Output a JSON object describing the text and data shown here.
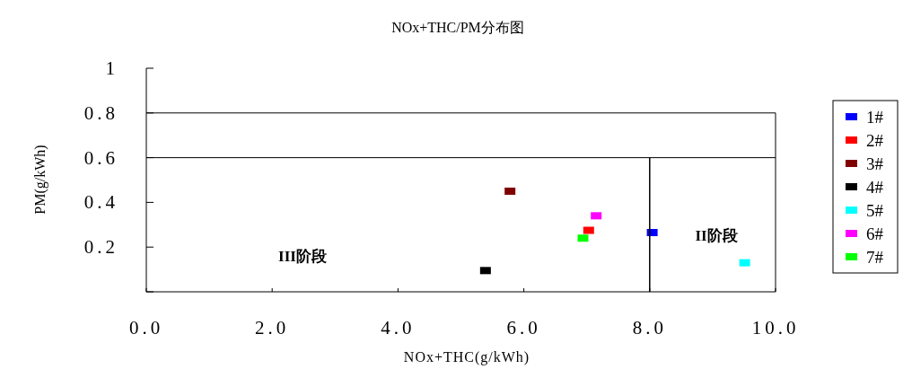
{
  "chart_data": {
    "type": "scatter",
    "title": "NOx+THC/PM分布图",
    "xlabel": "NOx+THC(g/kWh)",
    "ylabel": "PM(g/kWh)",
    "xlim": [
      0,
      10
    ],
    "ylim": [
      0,
      1
    ],
    "xticks": [
      {
        "value": 0,
        "label": "0.0"
      },
      {
        "value": 2,
        "label": "2.0"
      },
      {
        "value": 4,
        "label": "4.0"
      },
      {
        "value": 6,
        "label": "6.0"
      },
      {
        "value": 8,
        "label": "8.0"
      },
      {
        "value": 10,
        "label": "10.0"
      }
    ],
    "yticks": [
      {
        "value": 0,
        "label": null
      },
      0.2,
      0.4,
      0.6,
      0.8,
      1
    ],
    "marker": "square",
    "legend": "right",
    "grid": false,
    "series": [
      {
        "name": "1#",
        "color": "#0000ff",
        "x": [
          8.04
        ],
        "values": [
          0.265
        ]
      },
      {
        "name": "2#",
        "color": "#ff0000",
        "x": [
          7.03
        ],
        "values": [
          0.275
        ]
      },
      {
        "name": "3#",
        "color": "#800000",
        "x": [
          5.78
        ],
        "values": [
          0.45
        ]
      },
      {
        "name": "4#",
        "color": "#000000",
        "x": [
          5.39
        ],
        "values": [
          0.095
        ]
      },
      {
        "name": "5#",
        "color": "#00ffff",
        "x": [
          9.51
        ],
        "values": [
          0.13
        ]
      },
      {
        "name": "6#",
        "color": "#ff00ff",
        "x": [
          7.15
        ],
        "values": [
          0.34
        ]
      },
      {
        "name": "7#",
        "color": "#00ff00",
        "x": [
          6.94
        ],
        "values": [
          0.24
        ]
      },
      {
        "type": "line",
        "marker": "none",
        "color": "#000000",
        "x": [
          8,
          8
        ],
        "values": [
          0,
          0.6
        ]
      }
    ],
    "ref_lines": [
      {
        "axis": "y",
        "value": 0.8,
        "color": "#000000"
      },
      {
        "axis": "y",
        "value": 0.6,
        "color": "#000000"
      }
    ],
    "annotations": [
      "III阶段",
      "II阶段"
    ]
  }
}
